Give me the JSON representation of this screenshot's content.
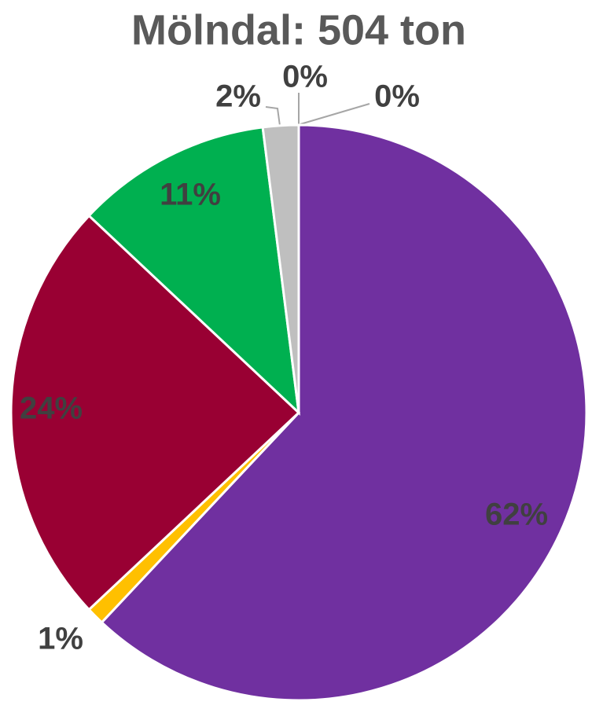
{
  "chart_data": {
    "type": "pie",
    "title": "Mölndal: 504 ton",
    "values": [
      62,
      1,
      24,
      11,
      2,
      0,
      0
    ],
    "value_labels": [
      "62%",
      "1%",
      "24%",
      "11%",
      "2%",
      "0%",
      "0%"
    ],
    "colors": [
      "#7030a0",
      "#ffc000",
      "#990033",
      "#00b050",
      "#bfbfbf",
      "#a6a6a6",
      "#d9d9d9"
    ]
  }
}
